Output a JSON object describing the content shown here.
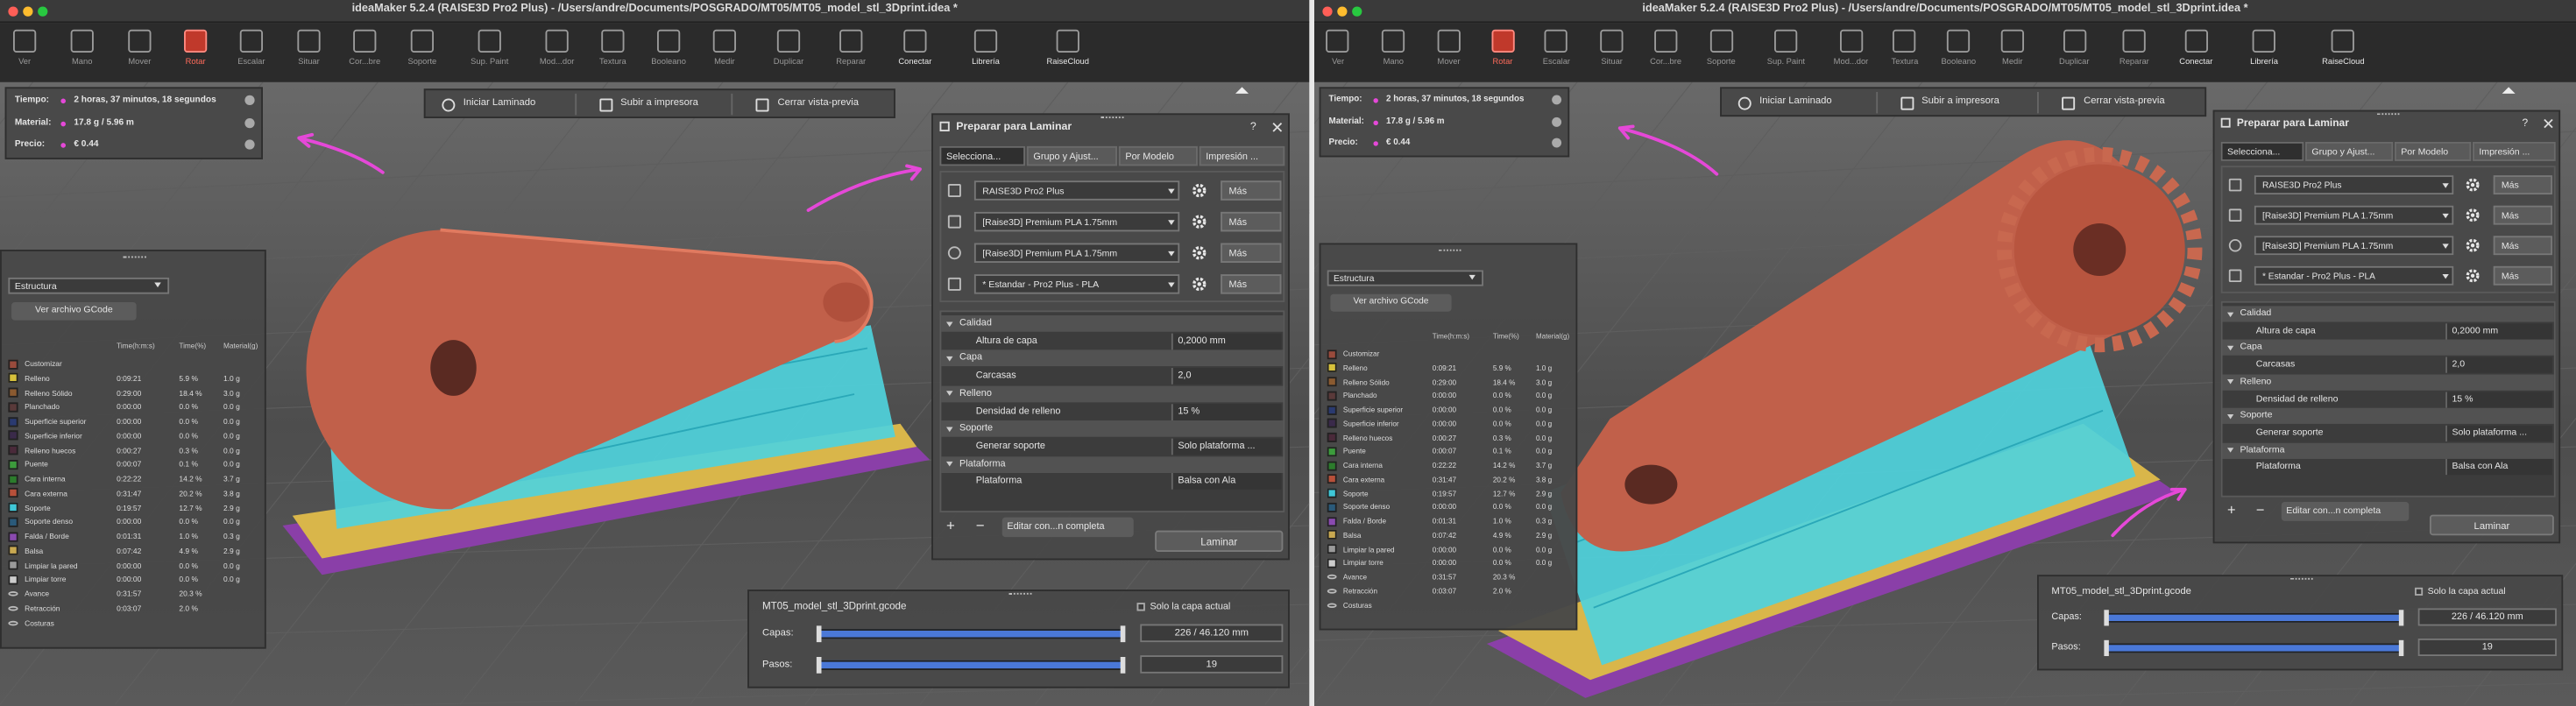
{
  "windows": [
    {
      "title": "ideaMaker 5.2.4 (RAISE3D Pro2 Plus) - /Users/andre/Documents/POSGRADO/MT05/MT05_model_stl_3Dprint.idea *",
      "toolbar": [
        "Ver",
        "Mano",
        "Mover",
        "Rotar",
        "Escalar",
        "Situar",
        "Cor...bre",
        "Soporte",
        "Sup. Paint",
        "Mod...dor",
        "Textura",
        "Booleano",
        "Medir",
        "Duplicar",
        "Reparar",
        "Conectar",
        "Librería",
        "RaiseCloud"
      ],
      "stats": [
        [
          "Tiempo:",
          "2 horas, 37 minutos, 18 segundos"
        ],
        [
          "Material:",
          "17.8 g / 5.96 m"
        ],
        [
          "Precio:",
          "€ 0.44"
        ]
      ],
      "actions": [
        "Iniciar Laminado",
        "Subir a impresora",
        "Cerrar vista-previa"
      ],
      "structure": {
        "dropdown": "Estructura",
        "button": "Ver archivo GCode",
        "columns": [
          "Time(h:m:s)",
          "Time(%)",
          "Material(g)"
        ],
        "colors": [
          "#9a4b3c",
          "#d6c13b",
          "#8a5a30",
          "#5a3a3a",
          "#2a3a70",
          "#3a2a4a",
          "#4a2a3a",
          "#3c9c3c",
          "#2c7c2c",
          "#b8503a",
          "#3fc8d8",
          "#2a5a7a",
          "#8a4ab0",
          "#c8a850",
          "#9a9a9a",
          "#cccccc"
        ],
        "rows": [
          [
            "Customizar"
          ],
          [
            "Relleno",
            "0:09:21",
            "5.9 %",
            "1.0 g"
          ],
          [
            "Relleno Sólido",
            "0:29:00",
            "18.4 %",
            "3.0 g"
          ],
          [
            "Planchado",
            "0:00:00",
            "0.0 %",
            "0.0 g"
          ],
          [
            "Superficie superior",
            "0:00:00",
            "0.0 %",
            "0.0 g"
          ],
          [
            "Superficie inferior",
            "0:00:00",
            "0.0 %",
            "0.0 g"
          ],
          [
            "Relleno huecos",
            "0:00:27",
            "0.3 %",
            "0.0 g"
          ],
          [
            "Puente",
            "0:00:07",
            "0.1 %",
            "0.0 g"
          ],
          [
            "Cara interna",
            "0:22:22",
            "14.2 %",
            "3.7 g"
          ],
          [
            "Cara externa",
            "0:31:47",
            "20.2 %",
            "3.8 g"
          ],
          [
            "Soporte",
            "0:19:57",
            "12.7 %",
            "2.9 g"
          ],
          [
            "Soporte denso",
            "0:00:00",
            "0.0 %",
            "0.0 g"
          ],
          [
            "Falda / Borde",
            "0:01:31",
            "1.0 %",
            "0.3 g"
          ],
          [
            "Balsa",
            "0:07:42",
            "4.9 %",
            "2.9 g"
          ],
          [
            "Limpiar la pared",
            "0:00:00",
            "0.0 %",
            "0.0 g"
          ],
          [
            "Limpiar torre",
            "0:00:00",
            "0.0 %",
            "0.0 g"
          ],
          [
            "Avance",
            "0:31:57",
            "20.3 %"
          ],
          [
            "Retracción",
            "0:03:07",
            "2.0 %"
          ],
          [
            "Costuras"
          ]
        ]
      },
      "prepare": {
        "title": "Preparar para Laminar",
        "help": "?",
        "tabs": [
          "Selecciona...",
          "Grupo y Ajust...",
          "Por Modelo",
          "Impresión ..."
        ],
        "profiles": [
          "RAISE3D Pro2 Plus",
          "[Raise3D] Premium PLA 1.75mm",
          "[Raise3D] Premium PLA 1.75mm",
          "* Estandar - Pro2 Plus - PLA"
        ],
        "more": "Más",
        "settings": [
          [
            "Calidad"
          ],
          [
            "Altura de capa",
            "0,2000 mm"
          ],
          [
            "Capa"
          ],
          [
            "Carcasas",
            "2,0"
          ],
          [
            "Relleno"
          ],
          [
            "Densidad de relleno",
            "15 %"
          ],
          [
            "Soporte"
          ],
          [
            "Generar soporte",
            "Solo plataforma ..."
          ],
          [
            "Plataforma"
          ],
          [
            "Plataforma",
            "Balsa con Ala"
          ]
        ],
        "add": "+",
        "remove": "−",
        "edit": "Editar con...n completa",
        "slice": "Laminar"
      },
      "gcode": {
        "file": "MT05_model_stl_3Dprint.gcode",
        "only_layer": "Solo la capa actual",
        "rows": [
          [
            "Capas:",
            "226 / 46.120 mm"
          ],
          [
            "Pasos:",
            "19"
          ]
        ]
      }
    },
    {
      "title": "ideaMaker 5.2.4 (RAISE3D Pro2 Plus) - /Users/andre/Documents/POSGRADO/MT05/MT05_model_stl_3Dprint.idea *",
      "toolbar": [
        "Ver",
        "Mano",
        "Mover",
        "Rotar",
        "Escalar",
        "Situar",
        "Cor...bre",
        "Soporte",
        "Sup. Paint",
        "Mod...dor",
        "Textura",
        "Booleano",
        "Medir",
        "Duplicar",
        "Reparar",
        "Conectar",
        "Librería",
        "RaiseCloud"
      ],
      "stats": [
        [
          "Tiempo:",
          "2 horas, 37 minutos, 18 segundos"
        ],
        [
          "Material:",
          "17.8 g / 5.96 m"
        ],
        [
          "Precio:",
          "€ 0.44"
        ]
      ],
      "actions": [
        "Iniciar Laminado",
        "Subir a impresora",
        "Cerrar vista-previa"
      ],
      "structure": {
        "dropdown": "Estructura",
        "button": "Ver archivo GCode",
        "columns": [
          "Time(h:m:s)",
          "Time(%)",
          "Material(g)"
        ],
        "colors": [
          "#9a4b3c",
          "#d6c13b",
          "#8a5a30",
          "#5a3a3a",
          "#2a3a70",
          "#3a2a4a",
          "#4a2a3a",
          "#3c9c3c",
          "#2c7c2c",
          "#b8503a",
          "#3fc8d8",
          "#2a5a7a",
          "#8a4ab0",
          "#c8a850",
          "#9a9a9a",
          "#cccccc"
        ],
        "rows": [
          [
            "Customizar"
          ],
          [
            "Relleno",
            "0:09:21",
            "5.9 %",
            "1.0 g"
          ],
          [
            "Relleno Sólido",
            "0:29:00",
            "18.4 %",
            "3.0 g"
          ],
          [
            "Planchado",
            "0:00:00",
            "0.0 %",
            "0.0 g"
          ],
          [
            "Superficie superior",
            "0:00:00",
            "0.0 %",
            "0.0 g"
          ],
          [
            "Superficie inferior",
            "0:00:00",
            "0.0 %",
            "0.0 g"
          ],
          [
            "Relleno huecos",
            "0:00:27",
            "0.3 %",
            "0.0 g"
          ],
          [
            "Puente",
            "0:00:07",
            "0.1 %",
            "0.0 g"
          ],
          [
            "Cara interna",
            "0:22:22",
            "14.2 %",
            "3.7 g"
          ],
          [
            "Cara externa",
            "0:31:47",
            "20.2 %",
            "3.8 g"
          ],
          [
            "Soporte",
            "0:19:57",
            "12.7 %",
            "2.9 g"
          ],
          [
            "Soporte denso",
            "0:00:00",
            "0.0 %",
            "0.0 g"
          ],
          [
            "Falda / Borde",
            "0:01:31",
            "1.0 %",
            "0.3 g"
          ],
          [
            "Balsa",
            "0:07:42",
            "4.9 %",
            "2.9 g"
          ],
          [
            "Limpiar la pared",
            "0:00:00",
            "0.0 %",
            "0.0 g"
          ],
          [
            "Limpiar torre",
            "0:00:00",
            "0.0 %",
            "0.0 g"
          ],
          [
            "Avance",
            "0:31:57",
            "20.3 %"
          ],
          [
            "Retracción",
            "0:03:07",
            "2.0 %"
          ],
          [
            "Costuras"
          ]
        ]
      },
      "prepare": {
        "title": "Preparar para Laminar",
        "help": "?",
        "tabs": [
          "Selecciona...",
          "Grupo y Ajust...",
          "Por Modelo",
          "Impresión ..."
        ],
        "profiles": [
          "RAISE3D Pro2 Plus",
          "[Raise3D] Premium PLA 1.75mm",
          "[Raise3D] Premium PLA 1.75mm",
          "* Estandar - Pro2 Plus - PLA"
        ],
        "more": "Más",
        "settings": [
          [
            "Calidad"
          ],
          [
            "Altura de capa",
            "0,2000 mm"
          ],
          [
            "Capa"
          ],
          [
            "Carcasas",
            "2,0"
          ],
          [
            "Relleno"
          ],
          [
            "Densidad de relleno",
            "15 %"
          ],
          [
            "Soporte"
          ],
          [
            "Generar soporte",
            "Solo plataforma ..."
          ],
          [
            "Plataforma"
          ],
          [
            "Plataforma",
            "Balsa con Ala"
          ]
        ],
        "add": "+",
        "remove": "−",
        "edit": "Editar con...n completa",
        "slice": "Laminar"
      },
      "gcode": {
        "file": "MT05_model_stl_3Dprint.gcode",
        "only_layer": "Solo la capa actual",
        "rows": [
          [
            "Capas:",
            "226 / 46.120 mm"
          ],
          [
            "Pasos:",
            "19"
          ]
        ]
      }
    }
  ]
}
